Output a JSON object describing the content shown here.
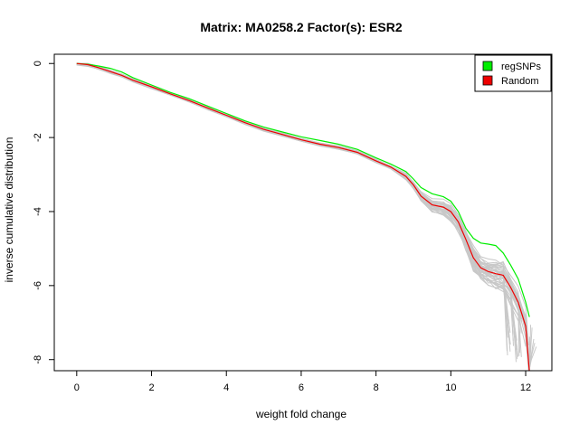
{
  "chart_data": {
    "type": "line",
    "title": "Matrix: MA0258.2 Factor(s): ESR2",
    "xlabel": "weight fold change",
    "ylabel": "inverse cumulative distribution",
    "xlim": [
      -0.6,
      12.7
    ],
    "ylim": [
      -8.3,
      0.25
    ],
    "x_ticks": [
      0,
      2,
      4,
      6,
      8,
      10,
      12
    ],
    "y_ticks": [
      0,
      -2,
      -4,
      -6,
      -8
    ],
    "x_tick_labels": [
      "0",
      "2",
      "4",
      "6",
      "8",
      "10",
      "12"
    ],
    "y_tick_labels": [
      "0",
      "-2",
      "-4",
      "-6",
      "-8"
    ],
    "grid": false,
    "legend": {
      "position": "top-right",
      "entries": [
        {
          "label": "regSNPs",
          "color": "#00ee00"
        },
        {
          "label": "Random",
          "color": "#ee0000"
        }
      ]
    },
    "background_series": {
      "count": 40,
      "color": "#c8c8c8"
    },
    "series": [
      {
        "name": "regSNPs",
        "color": "#00ee00",
        "x": [
          0,
          0.3,
          0.6,
          0.9,
          1.2,
          1.5,
          2,
          2.5,
          3,
          3.5,
          4,
          4.5,
          5,
          5.5,
          6,
          6.5,
          7,
          7.5,
          8,
          8.4,
          8.8,
          9,
          9.2,
          9.5,
          9.8,
          10,
          10.2,
          10.4,
          10.6,
          10.8,
          11,
          11.2,
          11.4,
          11.6,
          11.8,
          12,
          12.1
        ],
        "y": [
          0,
          -0.02,
          -0.07,
          -0.13,
          -0.23,
          -0.38,
          -0.58,
          -0.78,
          -0.95,
          -1.15,
          -1.35,
          -1.55,
          -1.72,
          -1.85,
          -1.98,
          -2.08,
          -2.18,
          -2.32,
          -2.55,
          -2.72,
          -2.92,
          -3.12,
          -3.35,
          -3.52,
          -3.6,
          -3.72,
          -4.0,
          -4.45,
          -4.72,
          -4.85,
          -4.88,
          -4.92,
          -5.12,
          -5.45,
          -5.82,
          -6.45,
          -6.85
        ]
      },
      {
        "name": "Random",
        "color": "#ee0000",
        "x": [
          0,
          0.3,
          0.6,
          0.9,
          1.2,
          1.5,
          2,
          2.5,
          3,
          3.5,
          4,
          4.5,
          5,
          5.5,
          6,
          6.5,
          7,
          7.5,
          8,
          8.4,
          8.8,
          9,
          9.2,
          9.5,
          9.8,
          10,
          10.2,
          10.4,
          10.6,
          10.8,
          11,
          11.2,
          11.4,
          11.6,
          11.8,
          12,
          12.1
        ],
        "y": [
          0,
          -0.03,
          -0.12,
          -0.22,
          -0.32,
          -0.45,
          -0.63,
          -0.82,
          -1.0,
          -1.2,
          -1.4,
          -1.6,
          -1.78,
          -1.92,
          -2.06,
          -2.18,
          -2.27,
          -2.4,
          -2.63,
          -2.8,
          -3.05,
          -3.28,
          -3.58,
          -3.82,
          -3.88,
          -4.0,
          -4.28,
          -4.75,
          -5.25,
          -5.52,
          -5.62,
          -5.68,
          -5.72,
          -6.05,
          -6.45,
          -7.1,
          -8.35
        ]
      }
    ]
  }
}
